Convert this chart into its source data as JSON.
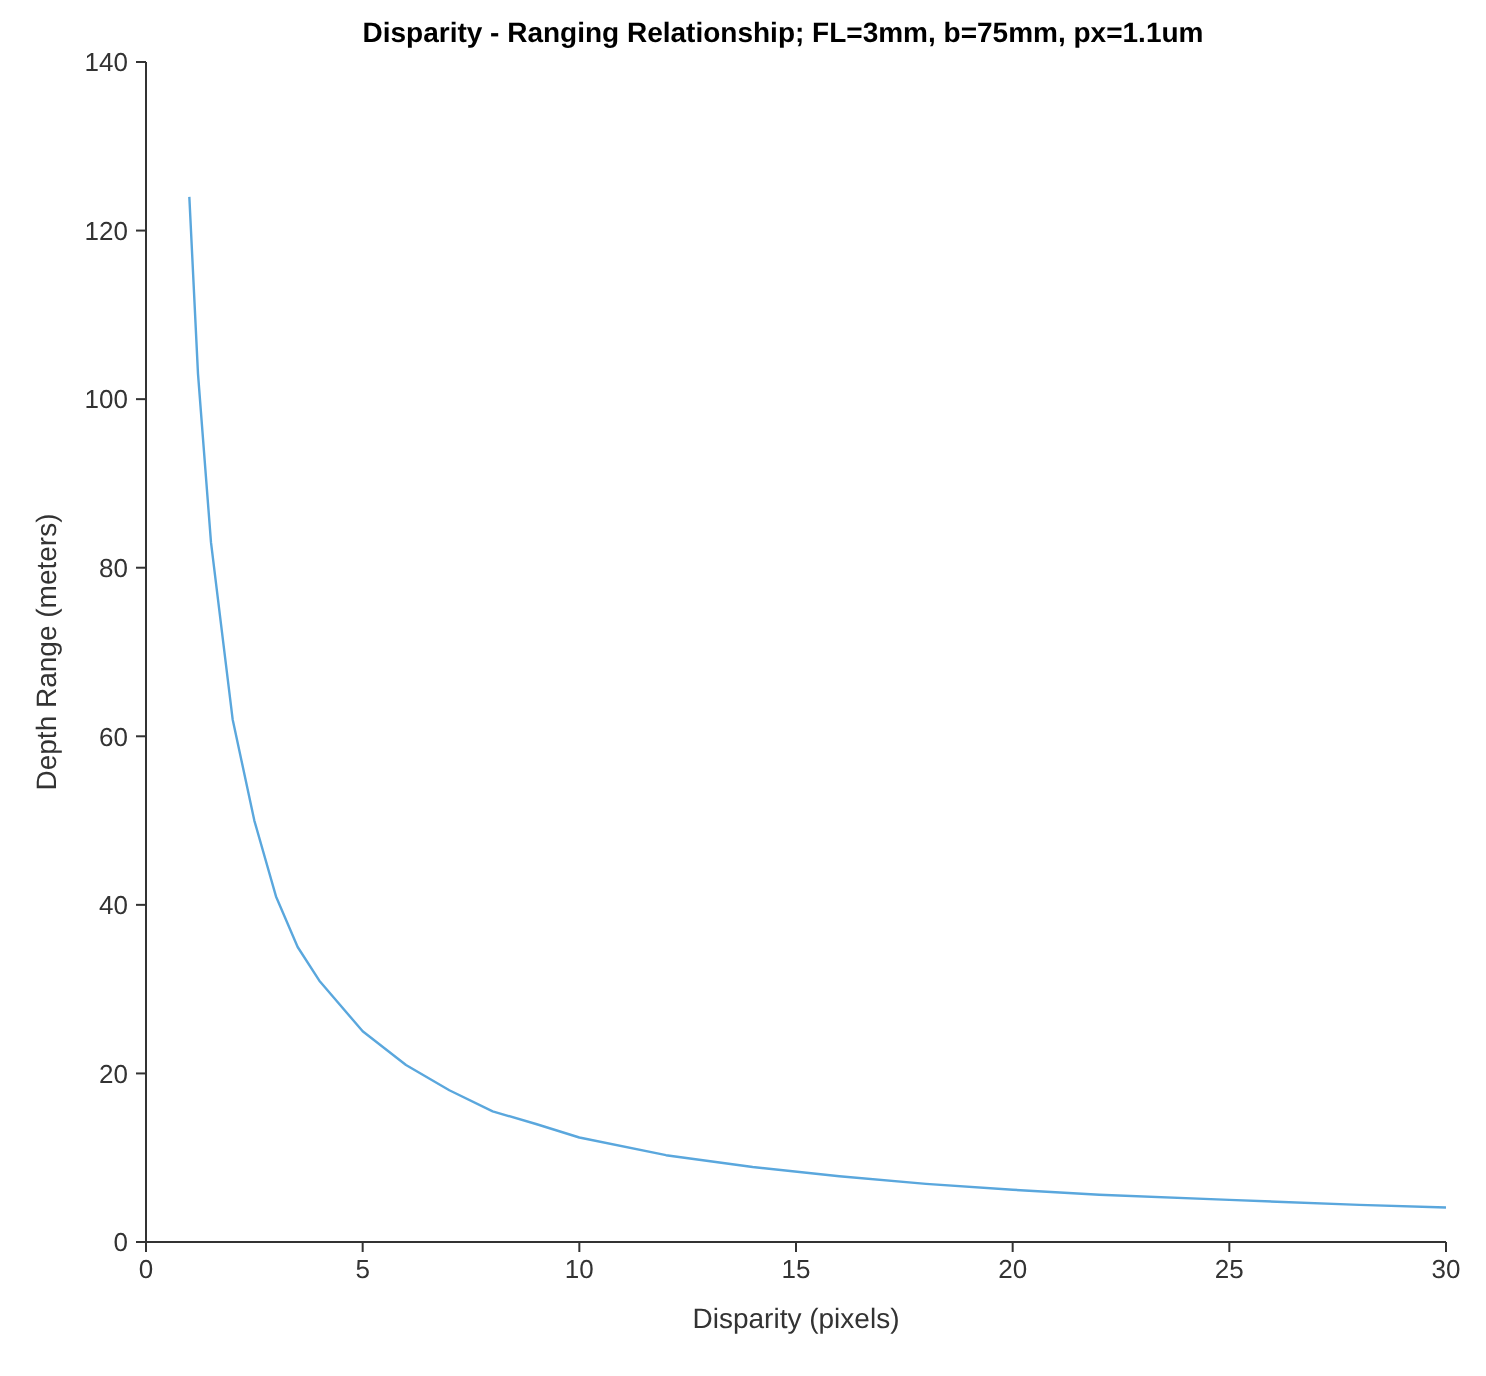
{
  "chart_data": {
    "type": "line",
    "title": "Disparity - Ranging Relationship; FL=3mm, b=75mm, px=1.1um",
    "xlabel": "Disparity (pixels)",
    "ylabel": "Depth Range (meters)",
    "x": [
      1,
      1.2,
      1.5,
      2,
      2.5,
      3,
      3.5,
      4,
      5,
      6,
      7,
      8,
      9,
      10,
      12,
      14,
      16,
      18,
      20,
      22,
      25,
      28,
      30
    ],
    "series": [
      {
        "color": "#5aa7dd",
        "values": [
          124,
          103,
          83,
          62,
          50,
          41,
          35,
          31,
          25,
          21,
          18,
          15.5,
          14,
          12.4,
          10.3,
          8.9,
          7.8,
          6.9,
          6.2,
          5.6,
          5,
          4.4,
          4.1
        ]
      }
    ],
    "xlim": [
      0,
      30
    ],
    "xticks": [
      0,
      5,
      10,
      15,
      20,
      25,
      30
    ],
    "ylim": [
      0,
      140
    ],
    "yticks": [
      0,
      20,
      40,
      60,
      80,
      100,
      120,
      140
    ],
    "grid": false,
    "legend": false,
    "marker": "none",
    "line_style": "solid"
  }
}
